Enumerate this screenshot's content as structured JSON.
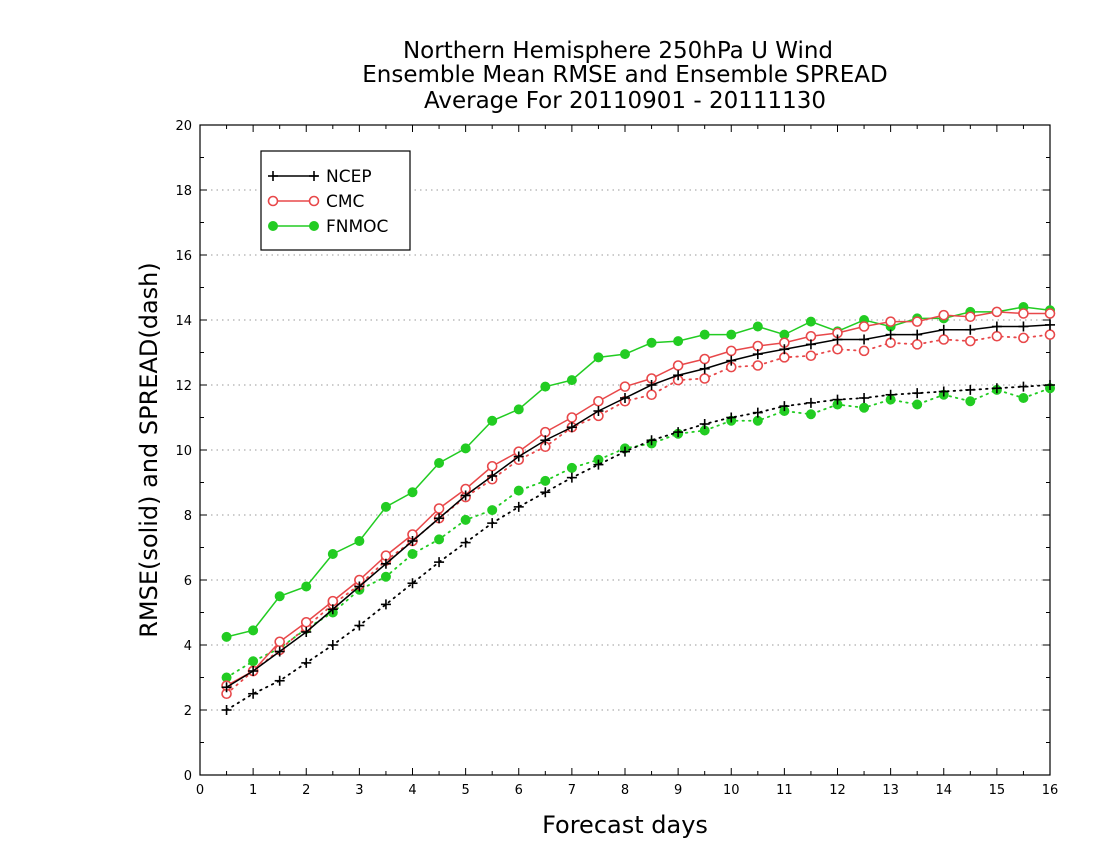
{
  "chart_data": {
    "type": "line",
    "title_lines": [
      "Northern Hemisphere 250hPa U Wind",
      "Ensemble Mean RMSE and Ensemble SPREAD",
      "Average For 20110901 - 20111130"
    ],
    "xlabel": "Forecast days",
    "ylabel": "RMSE(solid) and SPREAD(dash)",
    "xlim": [
      0,
      16
    ],
    "ylim": [
      0,
      20
    ],
    "xticks": [
      "0",
      "1",
      "2",
      "3",
      "4",
      "5",
      "6",
      "7",
      "8",
      "9",
      "10",
      "11",
      "12",
      "13",
      "14",
      "15",
      "16"
    ],
    "yticks": [
      "0",
      "2",
      "4",
      "6",
      "8",
      "10",
      "12",
      "14",
      "16",
      "18",
      "20"
    ],
    "grid": true,
    "legend_position": "top-left",
    "x": [
      0.5,
      1,
      1.5,
      2,
      2.5,
      3,
      3.5,
      4,
      4.5,
      5,
      5.5,
      6,
      6.5,
      7,
      7.5,
      8,
      8.5,
      9,
      9.5,
      10,
      10.5,
      11,
      11.5,
      12,
      12.5,
      13,
      13.5,
      14,
      14.5,
      15,
      15.5,
      16
    ],
    "series": [
      {
        "name": "NCEP",
        "color": "#000000",
        "marker": "plus",
        "rmse": [
          2.7,
          3.2,
          3.8,
          4.4,
          5.1,
          5.8,
          6.5,
          7.2,
          7.9,
          8.6,
          9.2,
          9.8,
          10.3,
          10.7,
          11.2,
          11.6,
          12.0,
          12.3,
          12.5,
          12.75,
          12.95,
          13.1,
          13.25,
          13.4,
          13.4,
          13.55,
          13.55,
          13.7,
          13.7,
          13.8,
          13.8,
          13.85
        ],
        "spread": [
          2.0,
          2.5,
          2.9,
          3.45,
          4.0,
          4.6,
          5.25,
          5.9,
          6.55,
          7.15,
          7.75,
          8.25,
          8.7,
          9.15,
          9.55,
          9.95,
          10.3,
          10.55,
          10.8,
          11.0,
          11.15,
          11.35,
          11.45,
          11.55,
          11.6,
          11.7,
          11.75,
          11.8,
          11.85,
          11.9,
          11.95,
          12.0
        ]
      },
      {
        "name": "CMC",
        "color": "#e8484a",
        "marker": "circle-open",
        "rmse": [
          2.75,
          3.2,
          4.1,
          4.7,
          5.35,
          6.0,
          6.75,
          7.4,
          8.2,
          8.8,
          9.5,
          9.95,
          10.55,
          11.0,
          11.5,
          11.95,
          12.2,
          12.6,
          12.8,
          13.05,
          13.2,
          13.3,
          13.5,
          13.6,
          13.8,
          13.95,
          13.95,
          14.15,
          14.1,
          14.25,
          14.2,
          14.2
        ],
        "spread": [
          2.5,
          3.2,
          3.85,
          4.55,
          5.25,
          5.85,
          6.6,
          7.2,
          7.9,
          8.55,
          9.1,
          9.7,
          10.1,
          10.7,
          11.05,
          11.5,
          11.7,
          12.15,
          12.2,
          12.55,
          12.6,
          12.85,
          12.9,
          13.1,
          13.05,
          13.3,
          13.25,
          13.4,
          13.35,
          13.5,
          13.45,
          13.55
        ]
      },
      {
        "name": "FNMOC",
        "color": "#22cc22",
        "marker": "circle-filled",
        "rmse": [
          4.25,
          4.45,
          5.5,
          5.8,
          6.8,
          7.2,
          8.25,
          8.7,
          9.6,
          10.05,
          10.9,
          11.25,
          11.95,
          12.15,
          12.85,
          12.95,
          13.3,
          13.35,
          13.55,
          13.55,
          13.8,
          13.55,
          13.95,
          13.65,
          14.0,
          13.8,
          14.05,
          14.05,
          14.25,
          14.25,
          14.4,
          14.3
        ],
        "spread": [
          3.0,
          3.5,
          3.9,
          4.5,
          5.0,
          5.7,
          6.1,
          6.8,
          7.25,
          7.85,
          8.15,
          8.75,
          9.05,
          9.45,
          9.7,
          10.05,
          10.2,
          10.5,
          10.6,
          10.9,
          10.9,
          11.2,
          11.1,
          11.4,
          11.3,
          11.55,
          11.4,
          11.7,
          11.5,
          11.85,
          11.6,
          11.9
        ]
      }
    ]
  }
}
